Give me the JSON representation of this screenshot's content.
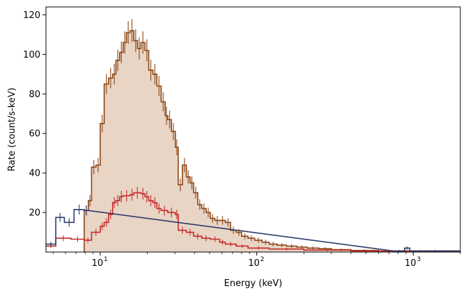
{
  "chart_data": {
    "type": "step",
    "xlabel": "Energy (keV)",
    "ylabel": "Rate (count/s-keV)",
    "xscale": "log",
    "xlim": [
      4.5,
      2000
    ],
    "ylim": [
      0,
      124
    ],
    "x_ticks": [
      {
        "value": 10,
        "label": "10",
        "exp": "1"
      },
      {
        "value": 100,
        "label": "10",
        "exp": "2"
      },
      {
        "value": 1000,
        "label": "10",
        "exp": "3"
      }
    ],
    "y_ticks": [
      20,
      40,
      60,
      80,
      100,
      120
    ],
    "grid": false,
    "legend": "none",
    "series": [
      {
        "color": "#8B4513",
        "fill": "#E8D5C6",
        "filled": true,
        "bins": [
          [
            7.9,
            8.4,
            21
          ],
          [
            8.4,
            8.8,
            26
          ],
          [
            8.8,
            9.4,
            43
          ],
          [
            9.4,
            10.0,
            44
          ],
          [
            10.0,
            10.6,
            65
          ],
          [
            10.6,
            11.3,
            85
          ],
          [
            11.3,
            12.0,
            88
          ],
          [
            12.0,
            12.6,
            90
          ],
          [
            12.6,
            13.3,
            97
          ],
          [
            13.3,
            14.0,
            101
          ],
          [
            14.0,
            14.7,
            106
          ],
          [
            14.7,
            15.5,
            111
          ],
          [
            15.5,
            16.4,
            112
          ],
          [
            16.4,
            17.3,
            107
          ],
          [
            17.3,
            18.2,
            103
          ],
          [
            18.2,
            19.3,
            106
          ],
          [
            19.3,
            20.4,
            102
          ],
          [
            20.4,
            21.7,
            92
          ],
          [
            21.7,
            23.0,
            90
          ],
          [
            23.0,
            24.5,
            84
          ],
          [
            24.5,
            26.0,
            76
          ],
          [
            26.0,
            27.0,
            69
          ],
          [
            27.0,
            28.5,
            67
          ],
          [
            28.5,
            30.2,
            61
          ],
          [
            30.2,
            31.5,
            53
          ],
          [
            31.5,
            33.5,
            34
          ],
          [
            33.5,
            35.5,
            44
          ],
          [
            35.5,
            37.5,
            38
          ],
          [
            37.5,
            39.5,
            35
          ],
          [
            39.5,
            42.0,
            30
          ],
          [
            42.0,
            44.5,
            24
          ],
          [
            44.5,
            47.5,
            22
          ],
          [
            47.5,
            50.5,
            20
          ],
          [
            50.5,
            54.0,
            17
          ],
          [
            54.0,
            58.0,
            16
          ],
          [
            58.0,
            63.0,
            16
          ],
          [
            63.0,
            68.0,
            15
          ],
          [
            68.0,
            74.0,
            11
          ],
          [
            74.0,
            80.0,
            10
          ],
          [
            80.0,
            88.0,
            8
          ],
          [
            88.0,
            97.0,
            7
          ],
          [
            97.0,
            108.0,
            6
          ],
          [
            108.0,
            120.0,
            5
          ],
          [
            120.0,
            135.0,
            4
          ],
          [
            135.0,
            155.0,
            3.5
          ],
          [
            155.0,
            180.0,
            3
          ],
          [
            180.0,
            210.0,
            2.5
          ],
          [
            210.0,
            250.0,
            2
          ],
          [
            250.0,
            300.0,
            1.7
          ],
          [
            300.0,
            400.0,
            1.2
          ],
          [
            400.0,
            600.0,
            0.8
          ],
          [
            600.0,
            2000.0,
            0.5
          ]
        ]
      },
      {
        "color": "#C62828",
        "filled": false,
        "bins": [
          [
            4.5,
            5.2,
            3
          ],
          [
            5.2,
            6.5,
            7
          ],
          [
            6.5,
            7.9,
            6.5
          ],
          [
            7.9,
            8.8,
            6
          ],
          [
            8.8,
            10.0,
            10
          ],
          [
            10.0,
            10.6,
            13
          ],
          [
            10.6,
            11.3,
            15
          ],
          [
            11.3,
            12.0,
            19
          ],
          [
            12.0,
            12.6,
            25
          ],
          [
            12.6,
            13.3,
            26
          ],
          [
            13.3,
            14.0,
            28
          ],
          [
            14.0,
            15.5,
            28.5
          ],
          [
            15.5,
            16.4,
            29
          ],
          [
            16.4,
            18.2,
            30
          ],
          [
            18.2,
            19.3,
            29.5
          ],
          [
            19.3,
            20.4,
            28
          ],
          [
            20.4,
            21.7,
            26
          ],
          [
            21.7,
            23.0,
            25
          ],
          [
            23.0,
            24.5,
            22
          ],
          [
            24.5,
            27.0,
            21
          ],
          [
            27.0,
            30.2,
            20
          ],
          [
            30.2,
            31.5,
            19
          ],
          [
            31.5,
            35.5,
            11
          ],
          [
            35.5,
            39.5,
            10
          ],
          [
            39.5,
            44.5,
            8
          ],
          [
            44.5,
            50.5,
            7
          ],
          [
            50.5,
            58.0,
            6.5
          ],
          [
            58.0,
            63.0,
            5
          ],
          [
            63.0,
            74.0,
            4
          ],
          [
            74.0,
            88.0,
            3
          ],
          [
            88.0,
            120.0,
            2
          ],
          [
            120.0,
            200.0,
            1.5
          ],
          [
            200.0,
            400.0,
            1.0
          ],
          [
            400.0,
            2000.0,
            0.5
          ]
        ]
      },
      {
        "color": "#2E3A6B",
        "filled": false,
        "bins": [
          [
            4.5,
            5.2,
            4
          ],
          [
            5.2,
            5.9,
            17.5
          ],
          [
            5.9,
            6.8,
            15
          ],
          [
            6.8,
            7.9,
            21.5
          ],
          [
            7.9,
            8.4,
            21
          ],
          [
            750.0,
            880.0,
            0.5
          ],
          [
            880.0,
            950.0,
            2
          ],
          [
            950.0,
            2000.0,
            0.5
          ]
        ]
      }
    ]
  }
}
